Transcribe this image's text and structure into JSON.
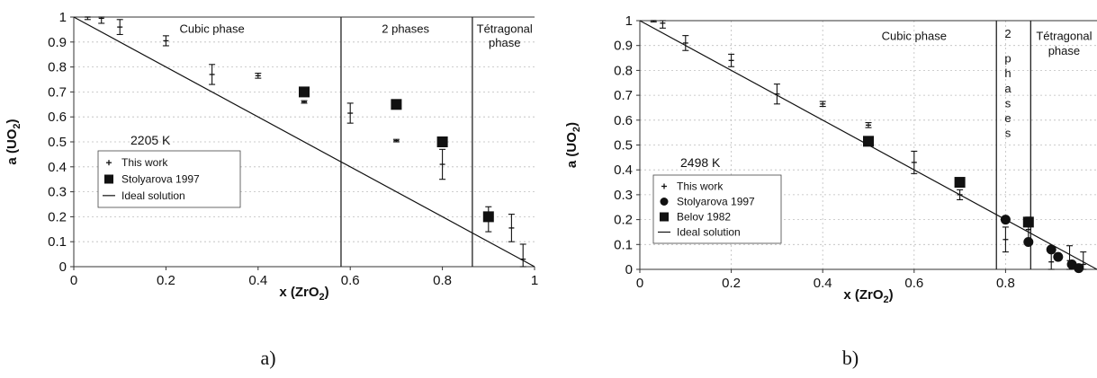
{
  "chart_data": [
    {
      "type": "scatter",
      "caption": "a)",
      "xlabel_main": "x (ZrO",
      "xlabel_sub": "2",
      "xlabel_end": ")",
      "ylabel_main": "a (UO",
      "ylabel_sub": "2",
      "ylabel_end": ")",
      "temperature": "2205 K",
      "xlim": [
        0,
        1
      ],
      "ylim": [
        0,
        1
      ],
      "xticks": [
        "0",
        "0.2",
        "0.4",
        "0.6",
        "0.8",
        "1"
      ],
      "xtick_values": [
        0,
        0.2,
        0.4,
        0.6,
        0.8,
        1
      ],
      "yticks": [
        "0",
        "0.1",
        "0.2",
        "0.3",
        "0.4",
        "0.5",
        "0.6",
        "0.7",
        "0.8",
        "0.9",
        "1"
      ],
      "ytick_values": [
        0,
        0.1,
        0.2,
        0.3,
        0.4,
        0.5,
        0.6,
        0.7,
        0.8,
        0.9,
        1
      ],
      "grid": true,
      "phase_boundaries": [
        0.58,
        0.865
      ],
      "regions": [
        {
          "label": "Cubic phase",
          "x": 0.3,
          "y": 0.955
        },
        {
          "label": "2 phases",
          "x": 0.72,
          "y": 0.955
        },
        {
          "label": "Tétragonal",
          "x": 0.935,
          "y": 0.955
        },
        {
          "label": "phase",
          "x": 0.935,
          "y": 0.9
        }
      ],
      "series": [
        {
          "name": "This work",
          "marker": "plus-errorbar",
          "points": [
            {
              "x": 0.03,
              "y": 1.0,
              "e": 0.01
            },
            {
              "x": 0.06,
              "y": 0.995,
              "e": 0.02
            },
            {
              "x": 0.1,
              "y": 0.96,
              "e": 0.03
            },
            {
              "x": 0.2,
              "y": 0.905,
              "e": 0.02
            },
            {
              "x": 0.3,
              "y": 0.77,
              "e": 0.04
            },
            {
              "x": 0.4,
              "y": 0.765,
              "e": 0.01
            },
            {
              "x": 0.5,
              "y": 0.66,
              "e": 0.005
            },
            {
              "x": 0.6,
              "y": 0.615,
              "e": 0.04
            },
            {
              "x": 0.7,
              "y": 0.505,
              "e": 0.005
            },
            {
              "x": 0.8,
              "y": 0.41,
              "e": 0.06
            },
            {
              "x": 0.9,
              "y": 0.19,
              "e": 0.05
            },
            {
              "x": 0.95,
              "y": 0.155,
              "e": 0.055
            },
            {
              "x": 0.975,
              "y": 0.03,
              "e": 0.06
            }
          ]
        },
        {
          "name": "Stolyarova 1997",
          "marker": "square",
          "points": [
            {
              "x": 0.5,
              "y": 0.7
            },
            {
              "x": 0.7,
              "y": 0.65
            },
            {
              "x": 0.8,
              "y": 0.5
            },
            {
              "x": 0.9,
              "y": 0.2
            }
          ]
        },
        {
          "name": "Ideal solution",
          "marker": "line",
          "points": [
            {
              "x": 0,
              "y": 1
            },
            {
              "x": 1,
              "y": 0
            }
          ]
        }
      ],
      "legend": [
        "This work",
        "Stolyarova 1997",
        "Ideal solution"
      ]
    },
    {
      "type": "scatter",
      "caption": "b)",
      "xlabel_main": "x (ZrO",
      "xlabel_sub": "2",
      "xlabel_end": ")",
      "ylabel_main": "a (UO",
      "ylabel_sub": "2",
      "ylabel_end": ")",
      "temperature": "2498 K",
      "xlim": [
        0,
        1
      ],
      "ylim": [
        0,
        1
      ],
      "xticks": [
        "0",
        "0.2",
        "0.4",
        "0.6",
        "0.8"
      ],
      "xtick_values": [
        0,
        0.2,
        0.4,
        0.6,
        0.8
      ],
      "yticks": [
        "0",
        "0.1",
        "0.2",
        "0.3",
        "0.4",
        "0.5",
        "0.6",
        "0.7",
        "0.8",
        "0.9",
        "1"
      ],
      "ytick_values": [
        0,
        0.1,
        0.2,
        0.3,
        0.4,
        0.5,
        0.6,
        0.7,
        0.8,
        0.9,
        1
      ],
      "grid": true,
      "phase_boundaries": [
        0.78,
        0.855
      ],
      "regions": [
        {
          "label": "Cubic phase",
          "x": 0.6,
          "y": 0.94
        },
        {
          "label": "2",
          "x": 0.805,
          "y": 0.95
        },
        {
          "label": "p",
          "x": 0.805,
          "y": 0.85
        },
        {
          "label": "h",
          "x": 0.805,
          "y": 0.79
        },
        {
          "label": "a",
          "x": 0.805,
          "y": 0.73
        },
        {
          "label": "s",
          "x": 0.805,
          "y": 0.67
        },
        {
          "label": "e",
          "x": 0.805,
          "y": 0.61
        },
        {
          "label": "s",
          "x": 0.805,
          "y": 0.55
        },
        {
          "label": "Tétragonal",
          "x": 0.928,
          "y": 0.94
        },
        {
          "label": "phase",
          "x": 0.928,
          "y": 0.88
        }
      ],
      "series": [
        {
          "name": "This work",
          "marker": "plus-errorbar",
          "points": [
            {
              "x": 0.03,
              "y": 1.0,
              "e": 0.005
            },
            {
              "x": 0.05,
              "y": 0.99,
              "e": 0.02
            },
            {
              "x": 0.1,
              "y": 0.91,
              "e": 0.03
            },
            {
              "x": 0.2,
              "y": 0.84,
              "e": 0.025
            },
            {
              "x": 0.3,
              "y": 0.705,
              "e": 0.04
            },
            {
              "x": 0.4,
              "y": 0.665,
              "e": 0.01
            },
            {
              "x": 0.5,
              "y": 0.58,
              "e": 0.01
            },
            {
              "x": 0.6,
              "y": 0.43,
              "e": 0.045
            },
            {
              "x": 0.7,
              "y": 0.3,
              "e": 0.02
            },
            {
              "x": 0.8,
              "y": 0.12,
              "e": 0.05
            },
            {
              "x": 0.85,
              "y": 0.16,
              "e": 0.05
            },
            {
              "x": 0.9,
              "y": 0.03,
              "e": 0.05
            },
            {
              "x": 0.94,
              "y": 0.035,
              "e": 0.06
            },
            {
              "x": 0.97,
              "y": 0.02,
              "e": 0.05
            }
          ]
        },
        {
          "name": "Stolyarova 1997",
          "marker": "circle",
          "points": [
            {
              "x": 0.8,
              "y": 0.2
            },
            {
              "x": 0.85,
              "y": 0.11
            },
            {
              "x": 0.9,
              "y": 0.08
            },
            {
              "x": 0.915,
              "y": 0.05
            },
            {
              "x": 0.945,
              "y": 0.02
            },
            {
              "x": 0.96,
              "y": 0.005
            }
          ]
        },
        {
          "name": "Belov 1982",
          "marker": "square",
          "points": [
            {
              "x": 0.5,
              "y": 0.515
            },
            {
              "x": 0.7,
              "y": 0.35
            },
            {
              "x": 0.85,
              "y": 0.19
            }
          ]
        },
        {
          "name": "Ideal solution",
          "marker": "line",
          "points": [
            {
              "x": 0,
              "y": 1
            },
            {
              "x": 1,
              "y": 0
            }
          ]
        }
      ],
      "legend": [
        "This work",
        "Stolyarova 1997",
        "Belov 1982",
        "Ideal solution"
      ]
    }
  ]
}
